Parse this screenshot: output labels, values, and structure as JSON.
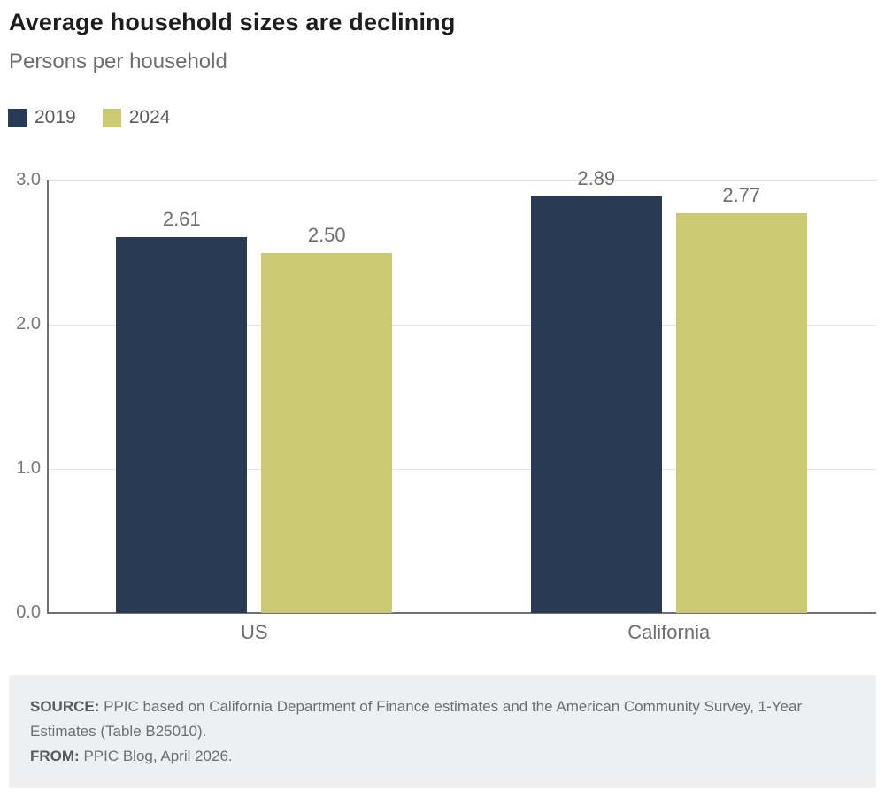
{
  "header": {
    "title": "Average household sizes are declining",
    "subtitle": "Persons per household"
  },
  "legend": [
    {
      "label": "2019",
      "color": "#293a55"
    },
    {
      "label": "2024",
      "color": "#cbc972"
    }
  ],
  "chart_data": {
    "type": "bar",
    "title": "Average household sizes are declining",
    "subtitle": "Persons per household",
    "categories": [
      "US",
      "California"
    ],
    "series": [
      {
        "name": "2019",
        "color": "#293a55",
        "values": [
          2.61,
          2.89
        ],
        "labels": [
          "2.61",
          "2.89"
        ]
      },
      {
        "name": "2024",
        "color": "#cbc972",
        "values": [
          2.5,
          2.77
        ],
        "labels": [
          "2.50",
          "2.77"
        ]
      }
    ],
    "ylim": [
      0,
      3.0
    ],
    "yticks": [
      0.0,
      1.0,
      2.0,
      3.0
    ],
    "ytick_labels": [
      "0.0",
      "1.0",
      "2.0",
      "3.0"
    ],
    "grid": true,
    "legend_position": "top-left"
  },
  "footer": {
    "source_label": "SOURCE:",
    "source_text": " PPIC based on California Department of Finance estimates and the American Community Survey, 1-Year Estimates (Table B25010).",
    "from_label": "FROM:",
    "from_text": " PPIC Blog, April 2026."
  },
  "colors": {
    "navy": "#293a55",
    "olive": "#cbc972",
    "gridline": "#e4e4e4",
    "axis": "#6e7073",
    "tick_text": "#77787b",
    "value_text": "#6d6e71",
    "category_text": "#6d6e71",
    "title_text": "#1d1d1f",
    "subtitle_text": "#6d6e71",
    "footer_bg": "#edeff0",
    "footer_text": "#6d6e71"
  }
}
